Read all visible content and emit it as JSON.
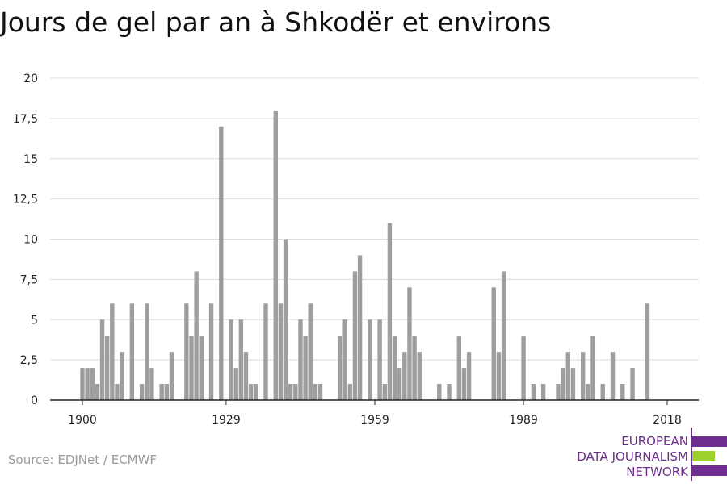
{
  "title": "Jours de gel par an à Shkodër et environs",
  "source": "Source: EDJNet / ECMWF",
  "logo": {
    "line1": "EUROPEAN",
    "line2": "DATA JOURNALISM",
    "line3": "NETWORK",
    "purple": "#6d2e8e",
    "green": "#9ed12b"
  },
  "colors": {
    "bar": "#9e9e9e",
    "grid": "#dcdcdc",
    "axis": "#222222"
  },
  "chart_data": {
    "type": "bar",
    "title": "Jours de gel par an à Shkodër et environs",
    "xlabel": "",
    "ylabel": "",
    "xlim": [
      1900,
      2018
    ],
    "ylim": [
      0,
      20
    ],
    "grid": true,
    "yticks": [
      0,
      2.5,
      5,
      7.5,
      10,
      12.5,
      15,
      17.5,
      20
    ],
    "ytick_labels": [
      "0",
      "2,5",
      "5",
      "7,5",
      "10",
      "12,5",
      "15",
      "17,5",
      "20"
    ],
    "xticks": [
      1900,
      1929,
      1959,
      1989,
      2018
    ],
    "xtick_labels": [
      "1900",
      "1929",
      "1959",
      "1989",
      "2018"
    ],
    "categories": [
      1900,
      1901,
      1902,
      1903,
      1904,
      1905,
      1906,
      1907,
      1908,
      1909,
      1910,
      1911,
      1912,
      1913,
      1914,
      1915,
      1916,
      1917,
      1918,
      1919,
      1920,
      1921,
      1922,
      1923,
      1924,
      1925,
      1926,
      1927,
      1928,
      1929,
      1930,
      1931,
      1932,
      1933,
      1934,
      1935,
      1936,
      1937,
      1938,
      1939,
      1940,
      1941,
      1942,
      1943,
      1944,
      1945,
      1946,
      1947,
      1948,
      1949,
      1950,
      1951,
      1952,
      1953,
      1954,
      1955,
      1956,
      1957,
      1958,
      1959,
      1960,
      1961,
      1962,
      1963,
      1964,
      1965,
      1966,
      1967,
      1968,
      1969,
      1970,
      1971,
      1972,
      1973,
      1974,
      1975,
      1976,
      1977,
      1978,
      1979,
      1980,
      1981,
      1982,
      1983,
      1984,
      1985,
      1986,
      1987,
      1988,
      1989,
      1990,
      1991,
      1992,
      1993,
      1994,
      1995,
      1996,
      1997,
      1998,
      1999,
      2000,
      2001,
      2002,
      2003,
      2004,
      2005,
      2006,
      2007,
      2008,
      2009,
      2010,
      2011,
      2012,
      2013,
      2014,
      2015,
      2016,
      2017,
      2018
    ],
    "values": [
      2,
      2,
      2,
      1,
      5,
      4,
      6,
      1,
      3,
      0,
      6,
      0,
      1,
      6,
      2,
      0,
      1,
      1,
      3,
      0,
      0,
      6,
      4,
      8,
      4,
      0,
      6,
      0,
      17,
      0,
      5,
      2,
      5,
      3,
      1,
      1,
      0,
      6,
      0,
      18,
      6,
      10,
      1,
      1,
      5,
      4,
      6,
      1,
      1,
      0,
      0,
      0,
      4,
      5,
      1,
      8,
      9,
      0,
      5,
      0,
      5,
      1,
      11,
      4,
      2,
      3,
      7,
      4,
      3,
      0,
      0,
      0,
      1,
      0,
      1,
      0,
      4,
      2,
      3,
      0,
      0,
      0,
      0,
      7,
      3,
      8,
      0,
      0,
      0,
      4,
      0,
      1,
      0,
      1,
      0,
      0,
      1,
      2,
      3,
      2,
      0,
      3,
      1,
      4,
      0,
      1,
      0,
      3,
      0,
      1,
      0,
      2,
      0,
      0,
      6,
      0,
      0,
      0,
      0
    ]
  }
}
